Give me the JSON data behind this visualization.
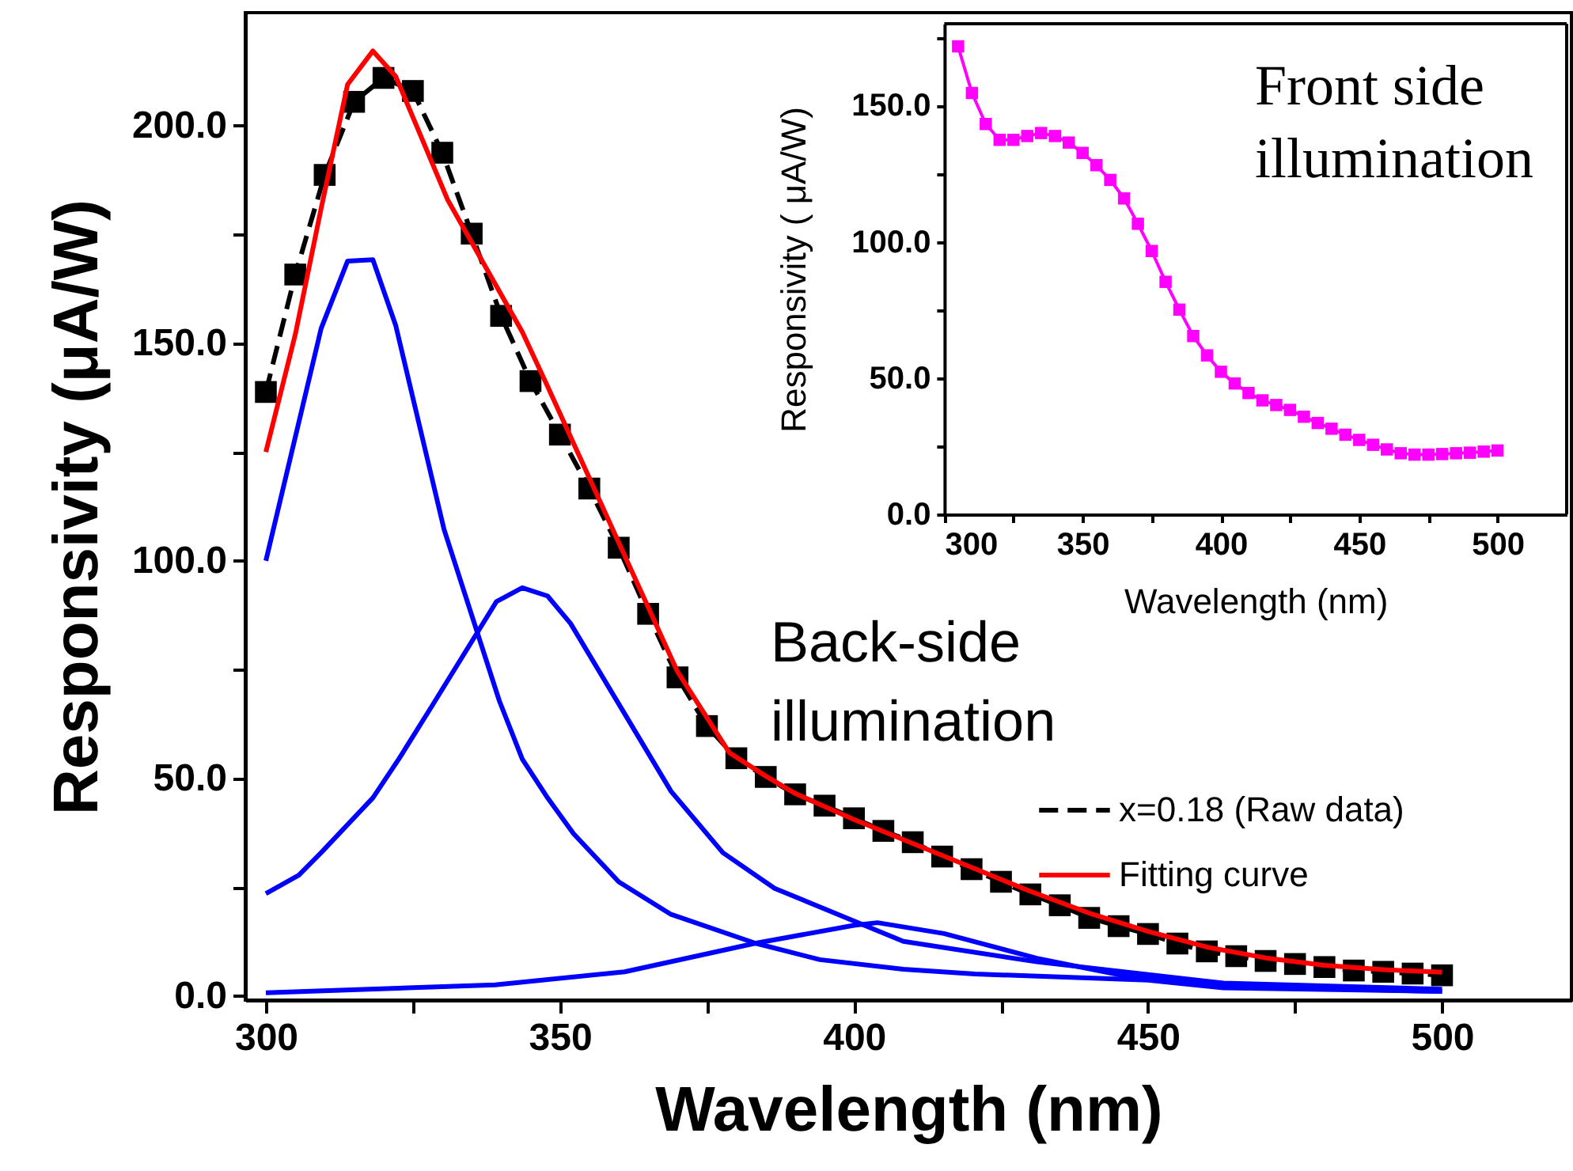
{
  "chart_data": [
    {
      "type": "line",
      "xlabel": "Wavelength (nm)",
      "ylabel": "Responsivity (μA/W)",
      "xlim": [
        296.5,
        522
      ],
      "ylim": [
        -1,
        226
      ],
      "xticks": [
        300,
        {
          "value": 325,
          "label": null
        },
        350,
        {
          "value": 375,
          "label": null
        },
        400,
        {
          "value": 425,
          "label": null
        },
        450,
        {
          "value": 475,
          "label": null
        },
        500
      ],
      "yticks": [
        {
          "value": 0,
          "label": "0.0"
        },
        {
          "value": 25,
          "label": null
        },
        {
          "value": 50,
          "label": "50.0"
        },
        {
          "value": 75,
          "label": null
        },
        {
          "value": 100,
          "label": "100.0"
        },
        {
          "value": 125,
          "label": null
        },
        {
          "value": 150,
          "label": "150.0"
        },
        {
          "value": 175,
          "label": null
        },
        {
          "value": 200,
          "label": "200.0"
        }
      ],
      "legend": "right",
      "annotations": [
        "Back-side illumination"
      ],
      "series": [
        {
          "name": "x=0.18 (Raw data)",
          "color": "#000000",
          "marker": "square",
          "line_style": "dashed",
          "x": [
            300,
            305,
            310,
            315,
            320,
            325,
            330,
            335,
            340,
            345,
            350,
            355,
            360,
            365,
            370,
            375,
            380,
            385,
            390,
            395,
            400,
            405,
            410,
            415,
            420,
            425,
            430,
            435,
            440,
            445,
            450,
            455,
            460,
            465,
            470,
            475,
            480,
            485,
            490,
            495,
            500
          ],
          "values": [
            138.8,
            165.8,
            188.7,
            205.5,
            211,
            208,
            193.8,
            175.2,
            156.3,
            141.3,
            129,
            116.6,
            103,
            87.8,
            73.2,
            62,
            54.6,
            50.3,
            46.3,
            43.7,
            40.8,
            37.9,
            35.3,
            32,
            29.1,
            26.2,
            23.3,
            20.8,
            17.9,
            16,
            14.2,
            12,
            10.2,
            9.1,
            8,
            7.3,
            6.6,
            5.8,
            5.5,
            5.1,
            4.7
          ]
        },
        {
          "name": "Fitting curve",
          "color": "#ff0000",
          "line_style": "solid",
          "x": [
            300,
            305,
            309.4,
            313.9,
            318.2,
            322.1,
            330.9,
            343.6,
            347.7,
            360,
            370,
            378.8,
            385,
            390,
            400,
            410,
            420,
            430,
            440,
            450,
            460,
            470,
            480,
            490,
            500
          ],
          "values": [
            125,
            152,
            181,
            209.5,
            217.2,
            211.3,
            183,
            152.6,
            140.7,
            104.2,
            74.5,
            55.9,
            50.5,
            46.5,
            40.5,
            35,
            29.5,
            24,
            19,
            14.8,
            11.2,
            8.7,
            7,
            6,
            5.4
          ]
        },
        {
          "color": "#0000ff",
          "line_style": "solid",
          "x": [
            300,
            309.4,
            313.9,
            318.2,
            322.1,
            330.3,
            339.7,
            343.6,
            347.9,
            352.3,
            360,
            368.9,
            383.2,
            394.2,
            408.4,
            420.6,
            450,
            462.8,
            500
          ],
          "values": [
            100,
            153.4,
            168.9,
            169.2,
            154,
            107.2,
            67.8,
            54.4,
            45.5,
            37.3,
            26.2,
            18.7,
            12.1,
            8.3,
            6.1,
            5,
            3.6,
            1.8,
            1
          ]
        },
        {
          "color": "#0000ff",
          "line_style": "solid",
          "x": [
            300,
            305.6,
            309.4,
            318.2,
            322.6,
            328.1,
            339.2,
            343.6,
            347.9,
            351.8,
            360,
            368.9,
            377.7,
            386.5,
            408.4,
            431.1,
            462.8,
            500
          ],
          "values": [
            23.5,
            27.7,
            32.9,
            45.5,
            54.4,
            66.3,
            90.6,
            93.8,
            91.9,
            85.6,
            67.1,
            47,
            32.9,
            24.7,
            12.5,
            7.8,
            2.9,
            1.5
          ]
        },
        {
          "color": "#0000ff",
          "line_style": "solid",
          "x": [
            300,
            339,
            361,
            383,
            400,
            404,
            415.3,
            431.1,
            447,
            470,
            500
          ],
          "values": [
            0.7,
            2.5,
            5.5,
            12,
            16.2,
            16.8,
            14.3,
            8.6,
            4.3,
            2,
            1
          ]
        }
      ]
    },
    {
      "type": "line",
      "xlabel": "Wavelength (nm)",
      "ylabel": "Responsivity ( μA/W)",
      "xlim": [
        300,
        525
      ],
      "ylim": [
        0,
        180
      ],
      "xticks": [
        300,
        {
          "value": 325,
          "label": null
        },
        350,
        {
          "value": 375,
          "label": null
        },
        400,
        {
          "value": 425,
          "label": null
        },
        450,
        {
          "value": 475,
          "label": null
        },
        500
      ],
      "yticks": [
        {
          "value": 0,
          "label": "0.0"
        },
        {
          "value": 25,
          "label": null
        },
        {
          "value": 50,
          "label": "50.0"
        },
        {
          "value": 75,
          "label": null
        },
        {
          "value": 100,
          "label": "100.0"
        },
        {
          "value": 125,
          "label": null
        },
        {
          "value": 150,
          "label": "150.0"
        },
        {
          "value": 175,
          "label": null
        }
      ],
      "annotations": [
        "Front side illumination"
      ],
      "series": [
        {
          "color": "#ff00ff",
          "marker": "square",
          "line_style": "solid",
          "x": [
            305,
            310,
            315,
            320,
            325,
            330,
            335,
            340,
            345,
            350,
            355,
            360,
            365,
            370,
            375,
            380,
            385,
            390,
            395,
            400,
            405,
            410,
            415,
            420,
            425,
            430,
            435,
            440,
            445,
            450,
            455,
            460,
            465,
            470,
            475,
            480,
            485,
            490,
            495,
            500
          ],
          "values": [
            171.7,
            154.6,
            143.2,
            137.4,
            137.4,
            138.8,
            139.9,
            138.8,
            136.4,
            132.6,
            128.1,
            122.7,
            115.9,
            106.6,
            96.6,
            85.3,
            75.1,
            65.4,
            58.3,
            52.3,
            48,
            44.5,
            41.8,
            40.1,
            38.3,
            35.8,
            33.5,
            31.4,
            29.2,
            27.3,
            25.5,
            23.8,
            22.4,
            21.9,
            21.9,
            22.1,
            22.4,
            22.6,
            23,
            23.4
          ]
        }
      ]
    }
  ]
}
